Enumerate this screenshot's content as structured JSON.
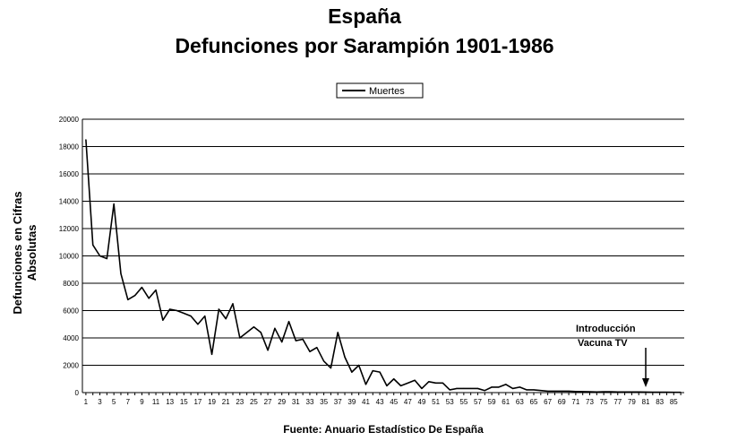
{
  "chart_data": {
    "type": "line",
    "title": "España",
    "subtitle": "Defunciones por Sarampión 1901-1986",
    "ylabel_line1": "Defunciones en Cifras",
    "ylabel_line2": "Absolutas",
    "xlabel": "Fuente: Anuario Estadístico De España",
    "ylim": [
      0,
      20000
    ],
    "yticks": [
      0,
      2000,
      4000,
      6000,
      8000,
      10000,
      12000,
      14000,
      16000,
      18000,
      20000
    ],
    "xticks": [
      "1",
      "3",
      "5",
      "7",
      "9",
      "11",
      "13",
      "15",
      "17",
      "19",
      "21",
      "23",
      "25",
      "27",
      "29",
      "31",
      "33",
      "35",
      "37",
      "39",
      "41",
      "43",
      "45",
      "47",
      "49",
      "51",
      "53",
      "55",
      "57",
      "59",
      "61",
      "63",
      "65",
      "67",
      "69",
      "71",
      "73",
      "75",
      "77",
      "79",
      "81",
      "83",
      "85"
    ],
    "grid": true,
    "legend_position": "top-center",
    "series": [
      {
        "name": "Muertes",
        "color": "#000000",
        "x": [
          1,
          2,
          3,
          4,
          5,
          6,
          7,
          8,
          9,
          10,
          11,
          12,
          13,
          14,
          15,
          16,
          17,
          18,
          19,
          20,
          21,
          22,
          23,
          24,
          25,
          26,
          27,
          28,
          29,
          30,
          31,
          32,
          33,
          34,
          35,
          36,
          37,
          38,
          39,
          40,
          41,
          42,
          43,
          44,
          45,
          46,
          47,
          48,
          49,
          50,
          51,
          52,
          53,
          54,
          55,
          56,
          57,
          58,
          59,
          60,
          61,
          62,
          63,
          64,
          65,
          66,
          67,
          68,
          69,
          70,
          71,
          72,
          73,
          74,
          75,
          76,
          77,
          78,
          79,
          80,
          81,
          82,
          83,
          84,
          85,
          86
        ],
        "values": [
          18500,
          10800,
          10000,
          9800,
          13800,
          8700,
          6800,
          7100,
          7700,
          6900,
          7500,
          5300,
          6100,
          6000,
          5800,
          5600,
          5000,
          5600,
          2800,
          6100,
          5400,
          6500,
          4000,
          4400,
          4800,
          4400,
          3100,
          4700,
          3700,
          5200,
          3800,
          3900,
          3000,
          3300,
          2300,
          1800,
          4400,
          2600,
          1500,
          2000,
          600,
          1600,
          1500,
          500,
          1000,
          500,
          700,
          900,
          300,
          800,
          700,
          700,
          200,
          300,
          300,
          300,
          300,
          150,
          400,
          400,
          600,
          300,
          400,
          200,
          200,
          150,
          100,
          100,
          100,
          100,
          80,
          70,
          60,
          50,
          60,
          60,
          50,
          50,
          50,
          50,
          40,
          30,
          30,
          30,
          20,
          20
        ]
      }
    ],
    "annotation": {
      "line1": "Introducción",
      "line2": "Vacuna TV",
      "x": 81
    }
  }
}
